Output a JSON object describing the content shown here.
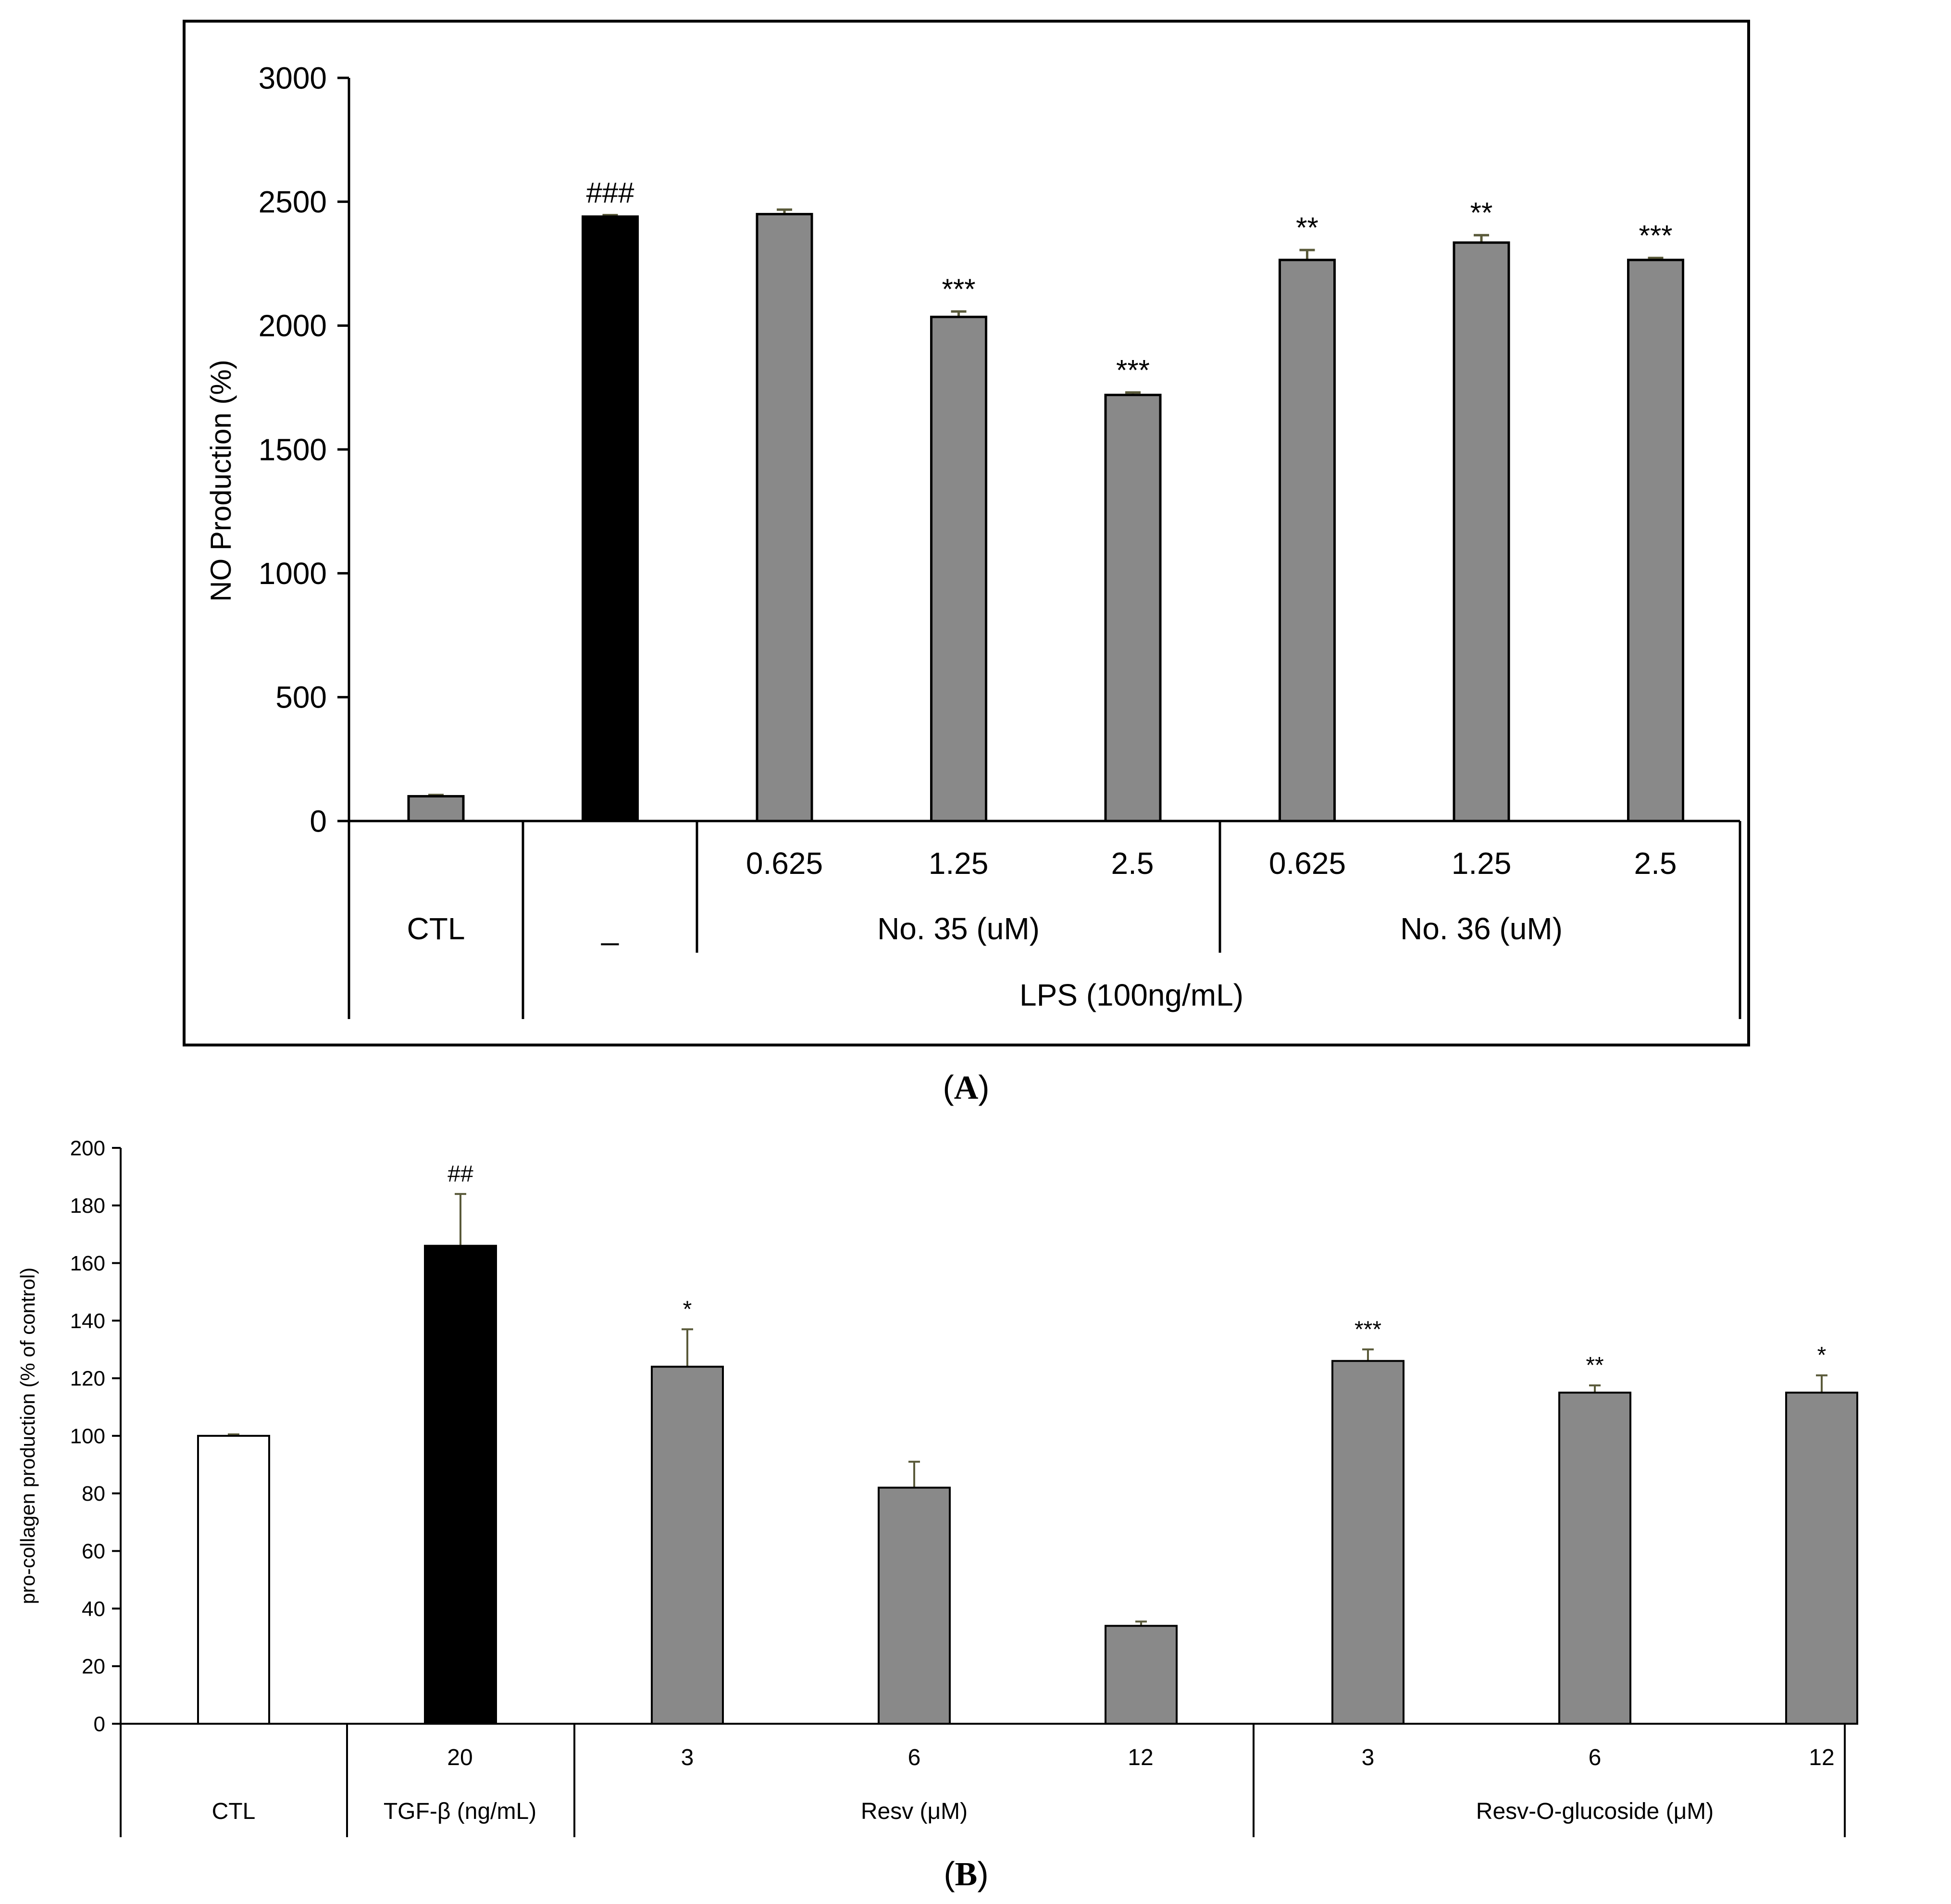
{
  "colors": {
    "treated": "#898989",
    "lps": "#000000",
    "control_white": "#ffffff",
    "error_bar": "#5a5a3a"
  },
  "panelA": {
    "caption_open": "(",
    "caption_letter": "A",
    "caption_close": ")",
    "chart_data": {
      "type": "bar",
      "ylabel": "NO Production (%)",
      "ylim": [
        0,
        3000
      ],
      "yticks": [
        0,
        500,
        1000,
        1500,
        2000,
        2500,
        3000
      ],
      "bars": [
        {
          "value": 100,
          "error": 5,
          "fill": "gray",
          "label": ""
        },
        {
          "value": 2440,
          "error": 6,
          "fill": "black",
          "label": "###"
        },
        {
          "value": 2450,
          "error": 18,
          "fill": "gray",
          "label": ""
        },
        {
          "value": 2035,
          "error": 22,
          "fill": "gray",
          "label": "***"
        },
        {
          "value": 1720,
          "error": 10,
          "fill": "gray",
          "label": "***"
        },
        {
          "value": 2265,
          "error": 40,
          "fill": "gray",
          "label": "**"
        },
        {
          "value": 2335,
          "error": 30,
          "fill": "gray",
          "label": "**"
        },
        {
          "value": 2265,
          "error": 8,
          "fill": "gray",
          "label": "***"
        }
      ],
      "concentrations": [
        "0.625",
        "1.25",
        "2.5",
        "0.625",
        "1.25",
        "2.5"
      ],
      "groups": {
        "ctl": "CTL",
        "none": "_",
        "compound1": "No. 35 (uM)",
        "compound2": "No. 36 (uM)",
        "lps": "LPS (100ng/mL)"
      }
    }
  },
  "panelB": {
    "caption_open": "(",
    "caption_letter": "B",
    "caption_close": ")",
    "chart_data": {
      "type": "bar",
      "ylabel": "pro-collagen production (% of control)",
      "ylim": [
        0,
        200
      ],
      "yticks": [
        0,
        20,
        40,
        60,
        80,
        100,
        120,
        140,
        160,
        180,
        200
      ],
      "bars": [
        {
          "value": 100,
          "error": 0.5,
          "fill": "white",
          "label": ""
        },
        {
          "value": 166,
          "error": 18,
          "fill": "black",
          "label": "##"
        },
        {
          "value": 124,
          "error": 13,
          "fill": "gray",
          "label": "*"
        },
        {
          "value": 82,
          "error": 9,
          "fill": "gray",
          "label": ""
        },
        {
          "value": 34,
          "error": 1.5,
          "fill": "gray",
          "label": ""
        },
        {
          "value": 126,
          "error": 4,
          "fill": "gray",
          "label": "***"
        },
        {
          "value": 115,
          "error": 2.5,
          "fill": "gray",
          "label": "**"
        },
        {
          "value": 115,
          "error": 6,
          "fill": "gray",
          "label": "*"
        }
      ],
      "concentrations": [
        "20",
        "3",
        "6",
        "12",
        "3",
        "6",
        "12"
      ],
      "groups": {
        "ctl": "CTL",
        "tgf": "TGF-β (ng/mL)",
        "resv": "Resv (μM)",
        "glucoside": "Resv-O-glucoside (μM)"
      }
    }
  }
}
